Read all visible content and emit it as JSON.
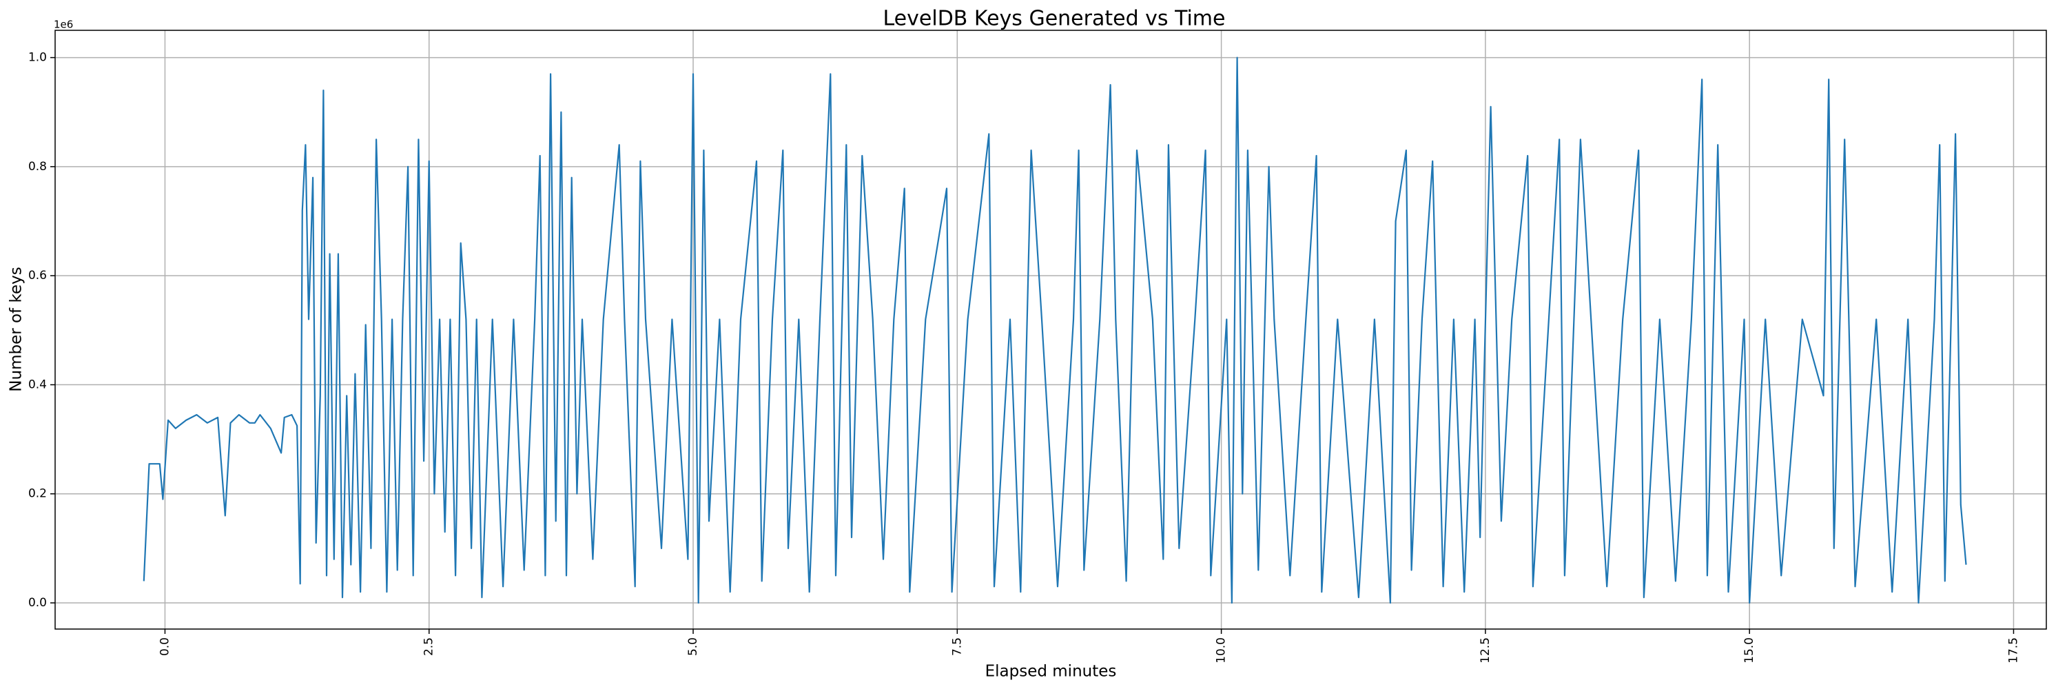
{
  "chart_data": {
    "type": "line",
    "title": "LevelDB Keys Generated vs Time",
    "xlabel": "Elapsed minutes",
    "ylabel": "Number of keys",
    "y_offset_label": "1e6",
    "grid": true,
    "xlim": [
      -1.04,
      17.81
    ],
    "ylim": [
      -48000,
      1050000
    ],
    "xticks": [
      {
        "value": 0,
        "label": "0.0"
      },
      2.5,
      {
        "value": 5,
        "label": "5.0"
      },
      7.5,
      {
        "value": 10,
        "label": "10.0"
      },
      12.5,
      {
        "value": 15,
        "label": "15.0"
      },
      17.5
    ],
    "yticks": [
      {
        "value": 0,
        "label": "0.0"
      },
      {
        "value": 200000,
        "label": "0.2"
      },
      {
        "value": 400000,
        "label": "0.4"
      },
      {
        "value": 600000,
        "label": "0.6"
      },
      {
        "value": 800000,
        "label": "0.8"
      },
      {
        "value": 1000000,
        "label": "1.0"
      }
    ],
    "series": [
      {
        "color": "#1f77b4",
        "x": [
          -0.2,
          -0.15,
          -0.05,
          -0.02,
          0.03,
          0.1,
          0.2,
          0.3,
          0.4,
          0.5,
          0.57,
          0.62,
          0.7,
          0.8,
          0.85,
          0.9,
          1.0,
          1.1,
          1.13,
          1.2,
          1.25,
          1.28,
          1.3,
          1.33,
          1.36,
          1.4,
          1.43,
          1.47,
          1.5,
          1.53,
          1.56,
          1.6,
          1.64,
          1.68,
          1.72,
          1.76,
          1.8,
          1.85,
          1.9,
          1.95,
          2.0,
          2.05,
          2.1,
          2.15,
          2.2,
          2.25,
          2.3,
          2.35,
          2.4,
          2.45,
          2.5,
          2.55,
          2.6,
          2.65,
          2.7,
          2.75,
          2.8,
          2.85,
          2.9,
          2.95,
          3.0,
          3.1,
          3.2,
          3.3,
          3.4,
          3.5,
          3.55,
          3.6,
          3.65,
          3.7,
          3.75,
          3.8,
          3.85,
          3.9,
          3.95,
          4.05,
          4.15,
          4.3,
          4.35,
          4.45,
          4.5,
          4.55,
          4.7,
          4.8,
          4.95,
          5.0,
          5.05,
          5.1,
          5.15,
          5.25,
          5.35,
          5.45,
          5.6,
          5.65,
          5.75,
          5.85,
          5.9,
          6.0,
          6.1,
          6.2,
          6.3,
          6.35,
          6.45,
          6.5,
          6.6,
          6.7,
          6.8,
          6.9,
          7.0,
          7.05,
          7.2,
          7.4,
          7.45,
          7.6,
          7.8,
          7.85,
          8.0,
          8.1,
          8.2,
          8.3,
          8.45,
          8.6,
          8.65,
          8.7,
          8.85,
          8.95,
          9.0,
          9.1,
          9.2,
          9.35,
          9.45,
          9.5,
          9.6,
          9.75,
          9.85,
          9.9,
          10.05,
          10.1,
          10.15,
          10.2,
          10.25,
          10.35,
          10.45,
          10.5,
          10.65,
          10.8,
          10.9,
          10.95,
          11.1,
          11.3,
          11.45,
          11.6,
          11.65,
          11.75,
          11.8,
          11.9,
          12.0,
          12.1,
          12.2,
          12.3,
          12.4,
          12.45,
          12.55,
          12.65,
          12.75,
          12.9,
          12.95,
          13.1,
          13.2,
          13.25,
          13.4,
          13.5,
          13.65,
          13.8,
          13.95,
          14.0,
          14.15,
          14.3,
          14.45,
          14.55,
          14.6,
          14.7,
          14.8,
          14.95,
          15.0,
          15.15,
          15.3,
          15.5,
          15.7,
          15.75,
          15.8,
          15.9,
          16.0,
          16.2,
          16.35,
          16.5,
          16.6,
          16.75,
          16.8,
          16.85,
          16.95,
          17.0,
          17.05
        ],
        "values": [
          40000,
          255000,
          255000,
          190000,
          335000,
          320000,
          335000,
          345000,
          330000,
          340000,
          160000,
          330000,
          345000,
          330000,
          330000,
          345000,
          320000,
          275000,
          340000,
          345000,
          325000,
          35000,
          720000,
          840000,
          520000,
          780000,
          110000,
          380000,
          940000,
          50000,
          640000,
          80000,
          640000,
          10000,
          380000,
          70000,
          420000,
          20000,
          510000,
          100000,
          850000,
          520000,
          20000,
          520000,
          60000,
          520000,
          800000,
          50000,
          850000,
          260000,
          810000,
          200000,
          520000,
          130000,
          520000,
          50000,
          660000,
          520000,
          100000,
          520000,
          10000,
          520000,
          30000,
          520000,
          60000,
          520000,
          820000,
          50000,
          970000,
          150000,
          900000,
          50000,
          780000,
          200000,
          520000,
          80000,
          520000,
          840000,
          520000,
          30000,
          810000,
          520000,
          100000,
          520000,
          80000,
          970000,
          0,
          830000,
          150000,
          520000,
          20000,
          520000,
          810000,
          40000,
          520000,
          830000,
          100000,
          520000,
          20000,
          520000,
          970000,
          50000,
          840000,
          120000,
          820000,
          520000,
          80000,
          520000,
          760000,
          20000,
          520000,
          760000,
          20000,
          520000,
          860000,
          30000,
          520000,
          20000,
          830000,
          520000,
          30000,
          520000,
          830000,
          60000,
          520000,
          950000,
          520000,
          40000,
          830000,
          520000,
          80000,
          840000,
          100000,
          520000,
          830000,
          50000,
          520000,
          0,
          1000000,
          200000,
          830000,
          60000,
          800000,
          520000,
          50000,
          520000,
          820000,
          20000,
          520000,
          10000,
          520000,
          0,
          700000,
          830000,
          60000,
          520000,
          810000,
          30000,
          520000,
          20000,
          520000,
          120000,
          910000,
          150000,
          520000,
          820000,
          30000,
          520000,
          850000,
          50000,
          850000,
          520000,
          30000,
          520000,
          830000,
          10000,
          520000,
          40000,
          520000,
          960000,
          50000,
          840000,
          20000,
          520000,
          0,
          520000,
          50000,
          520000,
          380000,
          960000,
          100000,
          850000,
          30000,
          520000,
          20000,
          520000,
          0,
          520000,
          840000,
          40000,
          860000,
          180000,
          70000
        ]
      }
    ]
  }
}
